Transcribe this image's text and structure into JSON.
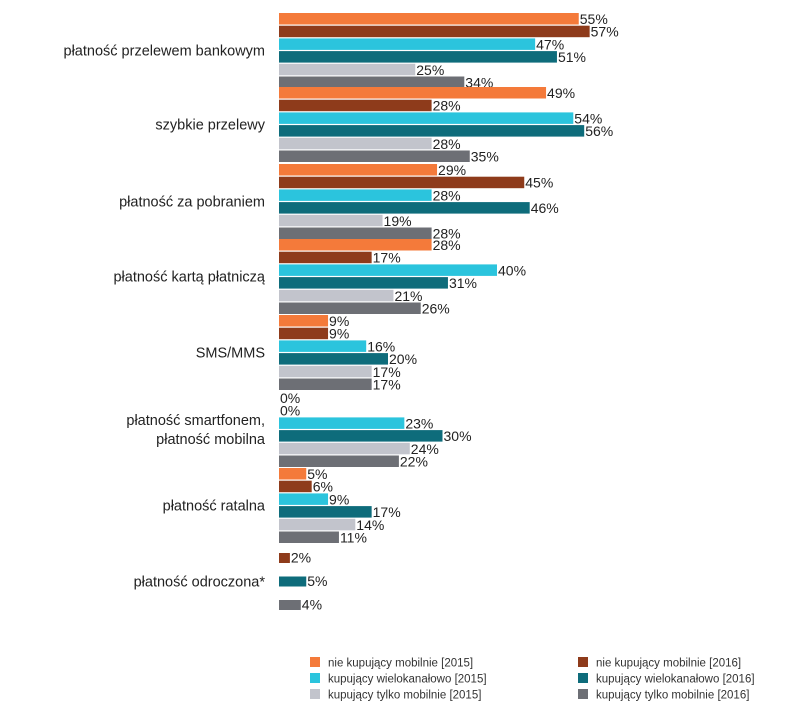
{
  "chart_data": {
    "type": "bar",
    "orientation": "horizontal",
    "grid": false,
    "legend_position": "bottom",
    "value_suffix": "%",
    "categories": [
      [
        "płatność przelewem bankowym"
      ],
      [
        "szybkie przelewy"
      ],
      [
        "płatność za pobraniem"
      ],
      [
        "płatność kartą płatniczą"
      ],
      [
        "SMS/MMS"
      ],
      [
        "płatność smartfonem,",
        "płatność mobilna"
      ],
      [
        "płatność ratalna"
      ],
      [
        "płatność odroczona*"
      ]
    ],
    "series": [
      {
        "name": "nie kupujący mobilnie [2015]",
        "color": "#F47A3A",
        "values": [
          55,
          49,
          29,
          28,
          9,
          0,
          5,
          null
        ]
      },
      {
        "name": "nie kupujący mobilnie [2016]",
        "color": "#8E3B1B",
        "values": [
          57,
          28,
          45,
          17,
          9,
          0,
          6,
          2
        ]
      },
      {
        "name": "kupujący wielokanałowo [2015]",
        "color": "#2BC4DD",
        "values": [
          47,
          54,
          28,
          40,
          16,
          23,
          9,
          null
        ]
      },
      {
        "name": "kupujący wielokanałowo [2016]",
        "color": "#0E6C7B",
        "values": [
          51,
          56,
          46,
          31,
          20,
          30,
          17,
          5
        ]
      },
      {
        "name": "kupujący tylko mobilnie [2015]",
        "color": "#C2C4CC",
        "values": [
          25,
          28,
          19,
          21,
          17,
          24,
          14,
          null
        ]
      },
      {
        "name": "kupujący tylko mobilnie [2016]",
        "color": "#6D6F75",
        "values": [
          34,
          35,
          28,
          26,
          17,
          22,
          11,
          4
        ]
      }
    ]
  }
}
